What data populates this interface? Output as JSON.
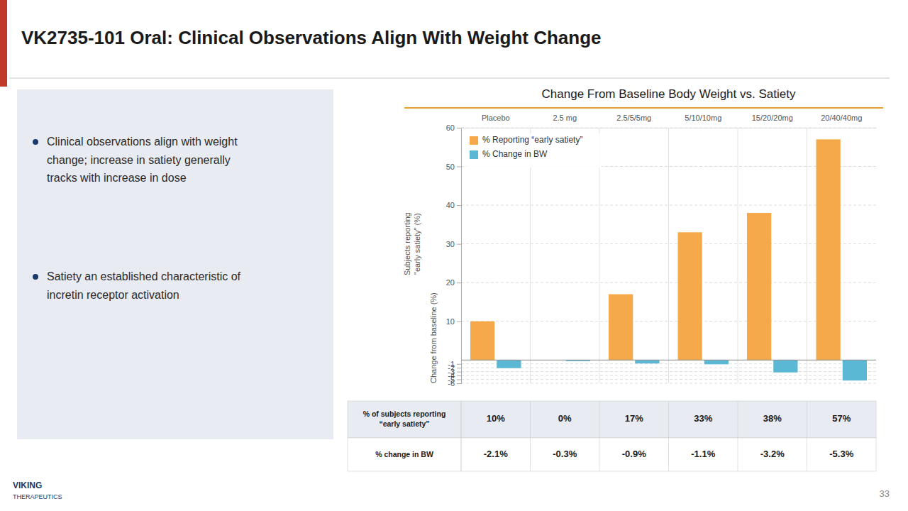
{
  "title": "VK2735-101 Oral: Clinical Observations Align With Weight Change",
  "bullets": [
    "Clinical observations align with weight\nchange; increase in satiety generally\ntracks with increase in dose",
    "Satiety an established characteristic of\nincretin receptor activation"
  ],
  "page_number": "33",
  "logo": [
    "VIKING",
    "THERAPEUTICS"
  ],
  "chart_data": {
    "type": "bar",
    "title": "Change From Baseline Body Weight vs. Satiety",
    "categories": [
      "Placebo",
      "2.5 mg",
      "2.5/5/5mg",
      "5/10/10mg",
      "15/20/20mg",
      "20/40/40mg"
    ],
    "series": [
      {
        "name": "% Reporting “early satiety”",
        "color": "#F5A94A",
        "values": [
          10,
          0,
          17,
          33,
          38,
          57
        ],
        "value_labels": [
          "10%",
          "0%",
          "17%",
          "33%",
          "38%",
          "57%"
        ],
        "table_label": "% of subjects reporting\n“early satiety”"
      },
      {
        "name": "% Change in BW",
        "color": "#5BB8D4",
        "values": [
          -2.1,
          -0.3,
          -0.9,
          -1.1,
          -3.2,
          -5.3
        ],
        "value_labels": [
          "-2.1%",
          "-0.3%",
          "-0.9%",
          "-1.1%",
          "-3.2%",
          "-5.3%"
        ],
        "table_label": "% change in BW"
      }
    ],
    "ylim": [
      -6,
      60
    ],
    "yticks": [
      10,
      20,
      30,
      40,
      50,
      60,
      -1,
      -2,
      -3,
      -4,
      -5,
      -6
    ],
    "ylabels": [
      "Subjects reporting\n\"early satiety\" (%)",
      "Change from baseline (%)"
    ],
    "grid": true,
    "legend": "upper left"
  }
}
